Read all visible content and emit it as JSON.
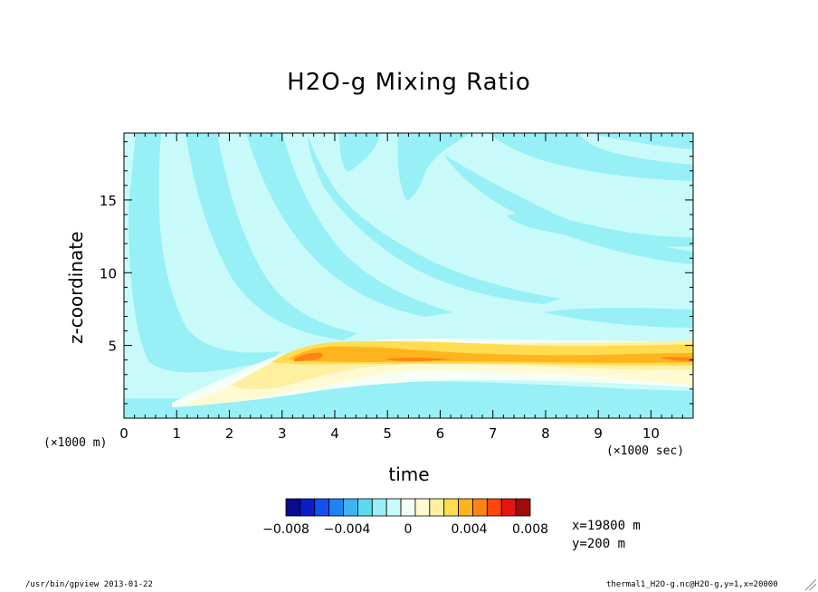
{
  "chart_data": {
    "type": "heatmap",
    "title": "H2O-g Mixing Ratio",
    "xlabel": "time",
    "ylabel": "z-coordinate",
    "x_unit_left": "(×1000 m)",
    "x_unit_right": "(×1000 sec)",
    "xlim": [
      0,
      10.8
    ],
    "ylim": [
      0,
      19.6
    ],
    "x_ticks": [
      "0",
      "1",
      "2",
      "3",
      "4",
      "5",
      "6",
      "7",
      "8",
      "9",
      "10"
    ],
    "y_ticks": [
      "5",
      "10",
      "15"
    ],
    "y_tick_values": [
      5,
      10,
      15
    ],
    "colorbar": {
      "levels": [
        -0.008,
        -0.007,
        -0.006,
        -0.005,
        -0.004,
        -0.003,
        -0.002,
        -0.001,
        0,
        0.001,
        0.002,
        0.003,
        0.004,
        0.005,
        0.006,
        0.007,
        0.008
      ],
      "tick_labels": [
        "-0.008",
        "-0.004",
        "0",
        "0.004",
        "0.008"
      ],
      "colors": [
        "#0a0a8c",
        "#0a1ec8",
        "#1450f0",
        "#1e82f0",
        "#3cb4f0",
        "#5adcf0",
        "#96f0f5",
        "#c8fafa",
        "#f5fff5",
        "#fffad2",
        "#fff0a0",
        "#ffdc50",
        "#ffb41e",
        "#ff8214",
        "#ff460f",
        "#e6140f",
        "#a00a0a"
      ]
    },
    "description_values": {
      "background_value": "~ -0.001",
      "peak_value": "~ 0.006",
      "peak_z": 4,
      "peak_time": [
        3.3,
        10.8
      ]
    }
  },
  "meta": {
    "x_info": "x=19800 m",
    "y_info": "y=200 m"
  },
  "footer": {
    "left": "/usr/bin/gpview  2013-01-22",
    "right": "thermal1_H2O-g.nc@H2O-g,y=1,x=20000"
  }
}
